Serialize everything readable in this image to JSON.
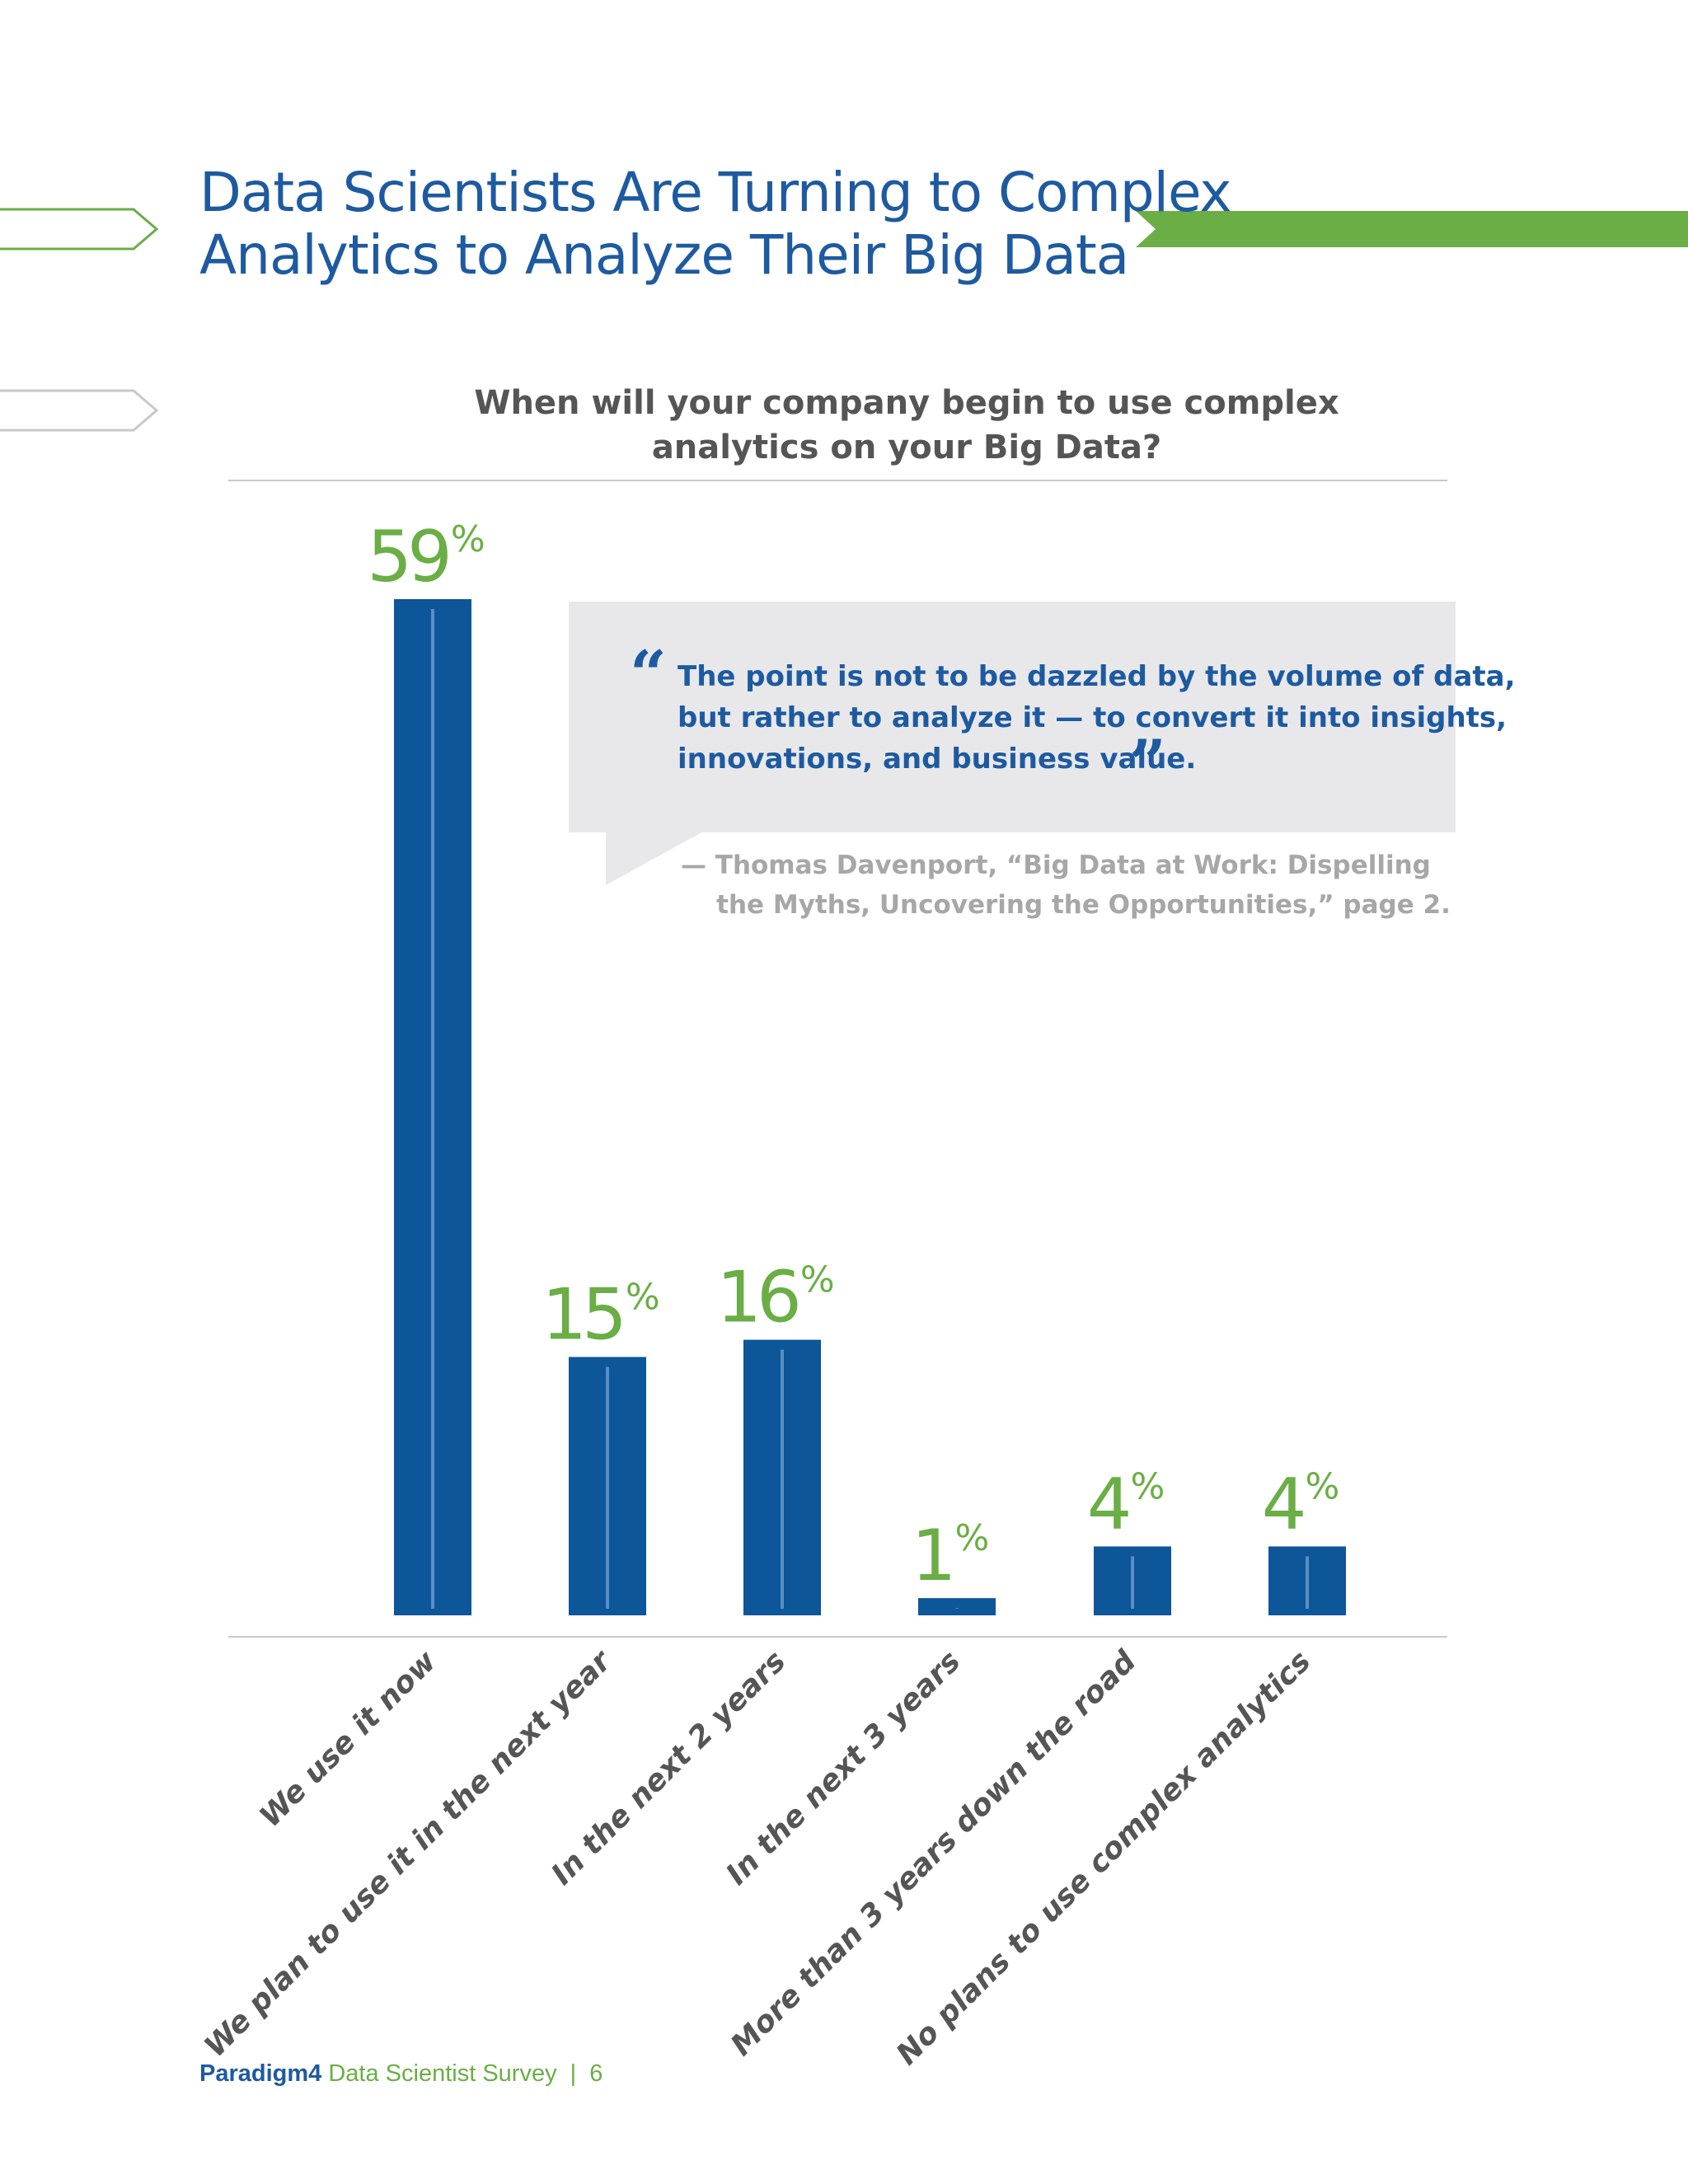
{
  "page": {
    "title_lines": [
      "Data Scientists Are Turning to Complex",
      "Analytics to Analyze Their Big Data"
    ],
    "colors": {
      "blue": "#0d5699",
      "title_blue": "#1e5aa0",
      "green": "#6aae45",
      "gray_text": "#555555",
      "quote_bg": "#e8e8ea"
    }
  },
  "quote": {
    "lines": [
      "The point is not to be dazzled by the volume of data,",
      "but rather to analyze it — to convert it into insights,",
      "innovations, and business value."
    ],
    "attribution_lines": [
      "— Thomas Davenport, “Big Data at Work: Dispelling",
      "    the Myths, Uncovering the Opportunities,” page 2."
    ]
  },
  "footer": {
    "brand": "Paradigm4",
    "publication": "Data Scientist Survey",
    "separator": "|",
    "page_number": "6"
  },
  "chart_data": {
    "type": "bar",
    "title_lines": [
      "When will your company begin to use complex",
      "analytics on your Big Data?"
    ],
    "categories": [
      "We use it now",
      "We plan to use it in the next year",
      "In the next 2 years",
      "In the next 3 years",
      "More than 3 years down the road",
      "No plans to use complex analytics"
    ],
    "values": [
      59,
      15,
      16,
      1,
      4,
      4
    ],
    "value_suffix": "%",
    "ylim": [
      0,
      59
    ],
    "grid": false,
    "legend": "none"
  }
}
